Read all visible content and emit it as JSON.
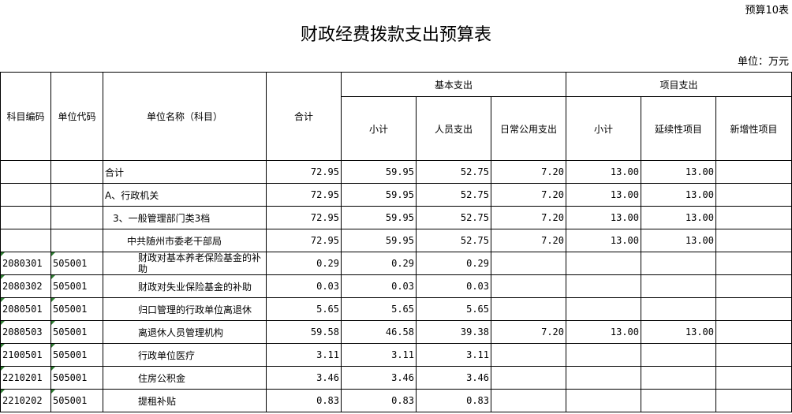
{
  "form_no": "预算10表",
  "title": "财政经费拨款支出预算表",
  "unit": "单位：万元",
  "headers": {
    "code": "科目编码",
    "unit_code": "单位代码",
    "name": "单位名称（科目）",
    "total": "合计",
    "basic": "基本支出",
    "project": "项目支出",
    "basic_sub": [
      "小计",
      "人员支出",
      "日常公用支出"
    ],
    "project_sub": [
      "小计",
      "延续性项目",
      "新增性项目"
    ]
  },
  "rows": [
    {
      "code": "",
      "unit_code": "",
      "name": "合计",
      "indent": 0,
      "total": "72.95",
      "b_sub": "59.95",
      "b_staff": "52.75",
      "b_daily": "7.20",
      "p_sub": "13.00",
      "p_cont": "13.00",
      "p_new": ""
    },
    {
      "code": "",
      "unit_code": "",
      "name": "A、行政机关",
      "indent": 0,
      "total": "72.95",
      "b_sub": "59.95",
      "b_staff": "52.75",
      "b_daily": "7.20",
      "p_sub": "13.00",
      "p_cont": "13.00",
      "p_new": ""
    },
    {
      "code": "",
      "unit_code": "",
      "name": "3、一般管理部门类3档",
      "indent": 1,
      "total": "72.95",
      "b_sub": "59.95",
      "b_staff": "52.75",
      "b_daily": "7.20",
      "p_sub": "13.00",
      "p_cont": "13.00",
      "p_new": ""
    },
    {
      "code": "",
      "unit_code": "",
      "name": "中共随州市委老干部局",
      "indent": 2,
      "total": "72.95",
      "b_sub": "59.95",
      "b_staff": "52.75",
      "b_daily": "7.20",
      "p_sub": "13.00",
      "p_cont": "13.00",
      "p_new": ""
    },
    {
      "code": "2080301",
      "unit_code": "505001",
      "name": "财政对基本养老保险基金的补助",
      "indent": 3,
      "total": "0.29",
      "b_sub": "0.29",
      "b_staff": "0.29",
      "b_daily": "",
      "p_sub": "",
      "p_cont": "",
      "p_new": ""
    },
    {
      "code": "2080302",
      "unit_code": "505001",
      "name": "财政对失业保险基金的补助",
      "indent": 3,
      "total": "0.03",
      "b_sub": "0.03",
      "b_staff": "0.03",
      "b_daily": "",
      "p_sub": "",
      "p_cont": "",
      "p_new": ""
    },
    {
      "code": "2080501",
      "unit_code": "505001",
      "name": "归口管理的行政单位离退休",
      "indent": 3,
      "total": "5.65",
      "b_sub": "5.65",
      "b_staff": "5.65",
      "b_daily": "",
      "p_sub": "",
      "p_cont": "",
      "p_new": ""
    },
    {
      "code": "2080503",
      "unit_code": "505001",
      "name": "离退休人员管理机构",
      "indent": 3,
      "total": "59.58",
      "b_sub": "46.58",
      "b_staff": "39.38",
      "b_daily": "7.20",
      "p_sub": "13.00",
      "p_cont": "13.00",
      "p_new": ""
    },
    {
      "code": "2100501",
      "unit_code": "505001",
      "name": "行政单位医疗",
      "indent": 3,
      "total": "3.11",
      "b_sub": "3.11",
      "b_staff": "3.11",
      "b_daily": "",
      "p_sub": "",
      "p_cont": "",
      "p_new": ""
    },
    {
      "code": "2210201",
      "unit_code": "505001",
      "name": "住房公积金",
      "indent": 3,
      "total": "3.46",
      "b_sub": "3.46",
      "b_staff": "3.46",
      "b_daily": "",
      "p_sub": "",
      "p_cont": "",
      "p_new": ""
    },
    {
      "code": "2210202",
      "unit_code": "505001",
      "name": "提租补贴",
      "indent": 3,
      "total": "0.83",
      "b_sub": "0.83",
      "b_staff": "0.83",
      "b_daily": "",
      "p_sub": "",
      "p_cont": "",
      "p_new": ""
    }
  ]
}
